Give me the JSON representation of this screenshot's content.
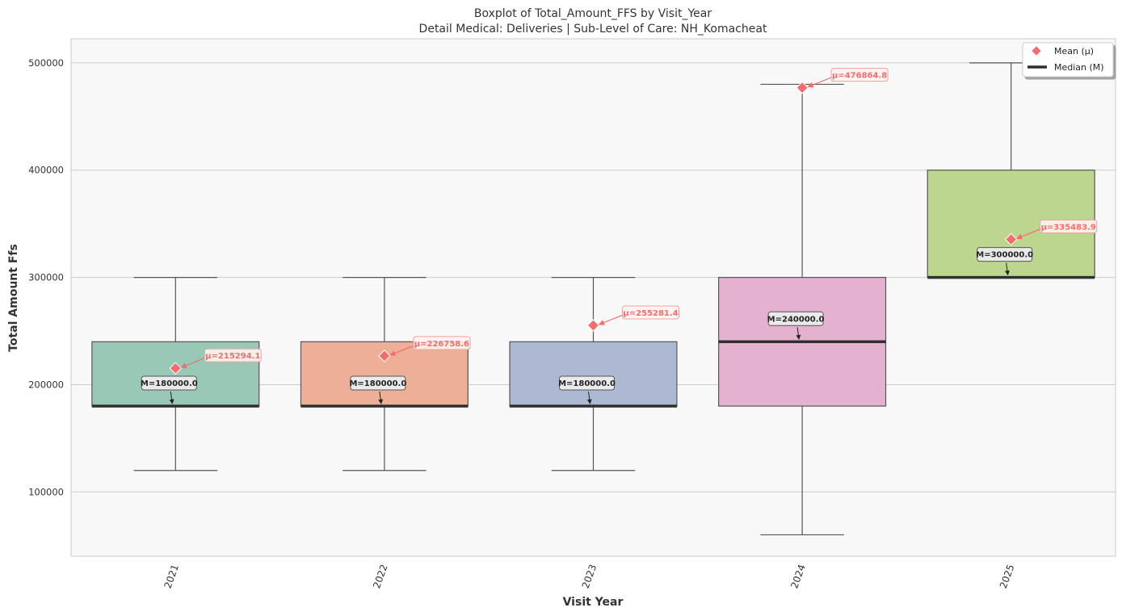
{
  "chart_data": {
    "type": "boxplot",
    "title": "Boxplot of Total_Amount_FFS by Visit_Year",
    "subtitle": "Detail Medical: Deliveries | Sub-Level of Care: NH_Komacheat",
    "xlabel": "Visit Year",
    "ylabel": "Total Amount Ffs",
    "ylim": [
      40000,
      522500
    ],
    "y_ticks": [
      100000,
      200000,
      300000,
      400000,
      500000
    ],
    "y_tick_labels": [
      "100000",
      "200000",
      "300000",
      "400000",
      "500000"
    ],
    "grid": "horizontal",
    "legend_position": "top-right",
    "legend": [
      {
        "label": "Mean (μ)",
        "marker": "diamond",
        "color": "#f46d6d"
      },
      {
        "label": "Median (M)",
        "marker": "line",
        "color": "#2f2f2f"
      }
    ],
    "categories": [
      "2021",
      "2022",
      "2023",
      "2024",
      "2025"
    ],
    "boxes": [
      {
        "category": "2021",
        "whisker_low": 120000,
        "q1": 180000,
        "median": 180000,
        "q3": 240000,
        "whisker_high": 300000,
        "mean": 215294.1,
        "color": "#99c8b7",
        "mean_label": "μ=215294.1",
        "median_label": "M=180000.0"
      },
      {
        "category": "2022",
        "whisker_low": 120000,
        "q1": 180000,
        "median": 180000,
        "q3": 240000,
        "whisker_high": 300000,
        "mean": 226758.6,
        "color": "#edb097",
        "mean_label": "μ=226758.6",
        "median_label": "M=180000.0"
      },
      {
        "category": "2023",
        "whisker_low": 120000,
        "q1": 180000,
        "median": 180000,
        "q3": 240000,
        "whisker_high": 300000,
        "mean": 255281.4,
        "color": "#adb9d3",
        "mean_label": "μ=255281.4",
        "median_label": "M=180000.0"
      },
      {
        "category": "2024",
        "whisker_low": 60000,
        "q1": 180000,
        "median": 240000,
        "q3": 300000,
        "whisker_high": 480000,
        "mean": 476864.8,
        "color": "#e4b1d0",
        "mean_label": "μ=476864.8",
        "median_label": "M=240000.0"
      },
      {
        "category": "2025",
        "whisker_low": 300000,
        "q1": 300000,
        "median": 300000,
        "q3": 400000,
        "whisker_high": 500000,
        "mean": 335483.9,
        "color": "#bdd68e",
        "mean_label": "μ=335483.9",
        "median_label": "M=300000.0"
      }
    ]
  }
}
